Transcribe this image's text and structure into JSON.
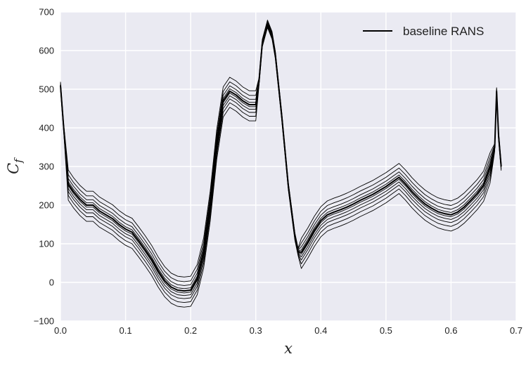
{
  "chart_data": {
    "type": "line",
    "title": "",
    "xlabel": "x",
    "ylabel": "C",
    "ylabel_sub": "f",
    "xlim": [
      0.0,
      0.7
    ],
    "ylim": [
      -100,
      700
    ],
    "xticks": [
      0.0,
      0.1,
      0.2,
      0.3,
      0.4,
      0.5,
      0.6,
      0.7
    ],
    "yticks": [
      -100,
      0,
      100,
      200,
      300,
      400,
      500,
      600,
      700
    ],
    "xtick_labels": [
      "0.0",
      "0.1",
      "0.2",
      "0.3",
      "0.4",
      "0.5",
      "0.6",
      "0.7"
    ],
    "ytick_labels": [
      "−100",
      "0",
      "100",
      "200",
      "300",
      "400",
      "500",
      "600",
      "700"
    ],
    "grid": true,
    "legend": {
      "position": "top-right",
      "entries": [
        "baseline RANS"
      ]
    },
    "series": [
      {
        "name": "baseline RANS",
        "x": [
          0.0,
          0.005,
          0.012,
          0.02,
          0.03,
          0.04,
          0.05,
          0.06,
          0.07,
          0.08,
          0.09,
          0.1,
          0.11,
          0.12,
          0.13,
          0.14,
          0.15,
          0.16,
          0.17,
          0.18,
          0.19,
          0.2,
          0.21,
          0.22,
          0.23,
          0.24,
          0.25,
          0.26,
          0.27,
          0.28,
          0.29,
          0.3,
          0.305,
          0.31,
          0.318,
          0.325,
          0.33,
          0.34,
          0.35,
          0.36,
          0.365,
          0.37,
          0.38,
          0.39,
          0.4,
          0.41,
          0.42,
          0.43,
          0.44,
          0.45,
          0.46,
          0.47,
          0.48,
          0.49,
          0.5,
          0.51,
          0.52,
          0.53,
          0.54,
          0.55,
          0.56,
          0.57,
          0.58,
          0.59,
          0.6,
          0.61,
          0.62,
          0.63,
          0.64,
          0.65,
          0.66,
          0.667,
          0.67,
          0.673,
          0.677
        ],
        "y": [
          510,
          400,
          255,
          235,
          215,
          200,
          200,
          185,
          175,
          165,
          150,
          138,
          130,
          108,
          85,
          60,
          30,
          5,
          -12,
          -20,
          -22,
          -20,
          10,
          80,
          200,
          360,
          470,
          495,
          485,
          470,
          460,
          460,
          520,
          620,
          670,
          640,
          590,
          430,
          250,
          120,
          80,
          78,
          105,
          135,
          160,
          175,
          182,
          188,
          195,
          203,
          212,
          220,
          228,
          238,
          248,
          260,
          272,
          255,
          235,
          218,
          203,
          192,
          183,
          178,
          175,
          182,
          195,
          212,
          230,
          252,
          300,
          350,
          495,
          380,
          300
        ]
      }
    ]
  }
}
